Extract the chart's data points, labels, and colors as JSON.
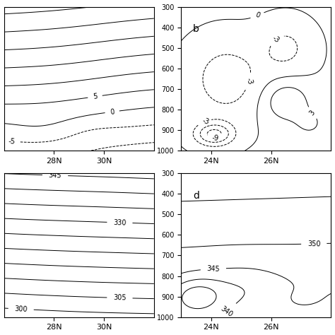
{
  "panel_a": {
    "xlim": [
      26,
      32
    ],
    "xlabel": [
      "28N",
      "30N"
    ],
    "xticks": [
      28,
      30
    ],
    "contour_levels": [
      -10,
      -5,
      0,
      5,
      10,
      15,
      20,
      25,
      30
    ],
    "label_levels": [
      -5,
      0,
      5
    ],
    "negative_dashed": true
  },
  "panel_b": {
    "xlim": [
      23,
      28
    ],
    "ylim": [
      1000,
      300
    ],
    "xlabel": [
      "24N",
      "26N"
    ],
    "xticks": [
      24,
      26
    ],
    "yticks": [
      300,
      400,
      500,
      600,
      700,
      800,
      900,
      1000
    ],
    "contour_levels": [
      -9,
      -6,
      -3,
      0,
      3,
      6
    ],
    "label_levels": [
      -9,
      -3,
      0,
      3
    ],
    "label": "b",
    "negative_dashed": true
  },
  "panel_c": {
    "xlim": [
      26,
      32
    ],
    "xlabel": [
      "28N",
      "30N"
    ],
    "xticks": [
      28,
      30
    ],
    "contour_levels": [
      295,
      300,
      305,
      310,
      315,
      320,
      325,
      330,
      335,
      340,
      345,
      350
    ],
    "label_levels": [
      300,
      305,
      330,
      345
    ],
    "negative_dashed": false
  },
  "panel_d": {
    "xlim": [
      23,
      28
    ],
    "ylim": [
      1000,
      300
    ],
    "xlabel": [
      "24N",
      "26N"
    ],
    "xticks": [
      24,
      26
    ],
    "yticks": [
      300,
      400,
      500,
      600,
      700,
      800,
      900,
      1000
    ],
    "contour_levels": [
      330,
      335,
      340,
      345,
      350,
      355
    ],
    "label_levels": [
      340,
      345,
      350
    ],
    "label": "d",
    "negative_dashed": false
  },
  "background_color": "#ffffff",
  "line_color": "#000000",
  "fontsize": 8
}
